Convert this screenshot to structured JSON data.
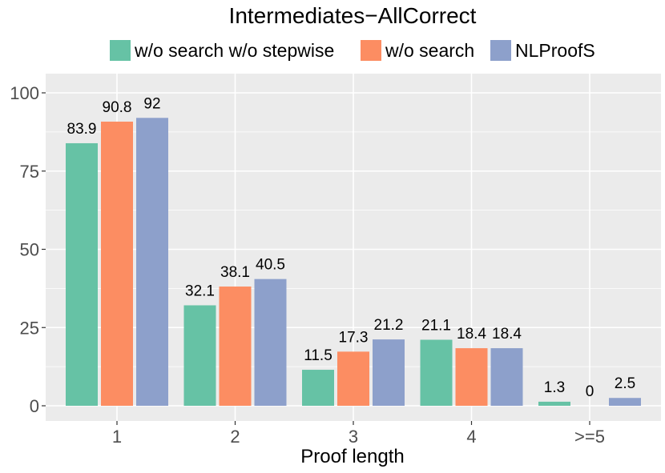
{
  "chart_data": {
    "type": "bar",
    "title": "Intermediates−AllCorrect",
    "xlabel": "Proof length",
    "ylabel": "",
    "categories": [
      "1",
      "2",
      "3",
      "4",
      ">=5"
    ],
    "ylim": [
      0,
      100
    ],
    "yticks": [
      0,
      25,
      50,
      75,
      100
    ],
    "grid": true,
    "legend_position": "top",
    "series": [
      {
        "name": "w/o search w/o stepwise",
        "color": "#66c2a5",
        "values": [
          83.9,
          32.1,
          11.5,
          21.1,
          1.3
        ]
      },
      {
        "name": "w/o search",
        "color": "#fc8d62",
        "values": [
          90.8,
          38.1,
          17.3,
          18.4,
          0
        ]
      },
      {
        "name": "NLProofS",
        "color": "#8da0cb",
        "values": [
          92,
          40.5,
          21.2,
          18.4,
          2.5
        ]
      }
    ],
    "background_color": "#ebebeb",
    "grid_color": "#ffffff"
  }
}
